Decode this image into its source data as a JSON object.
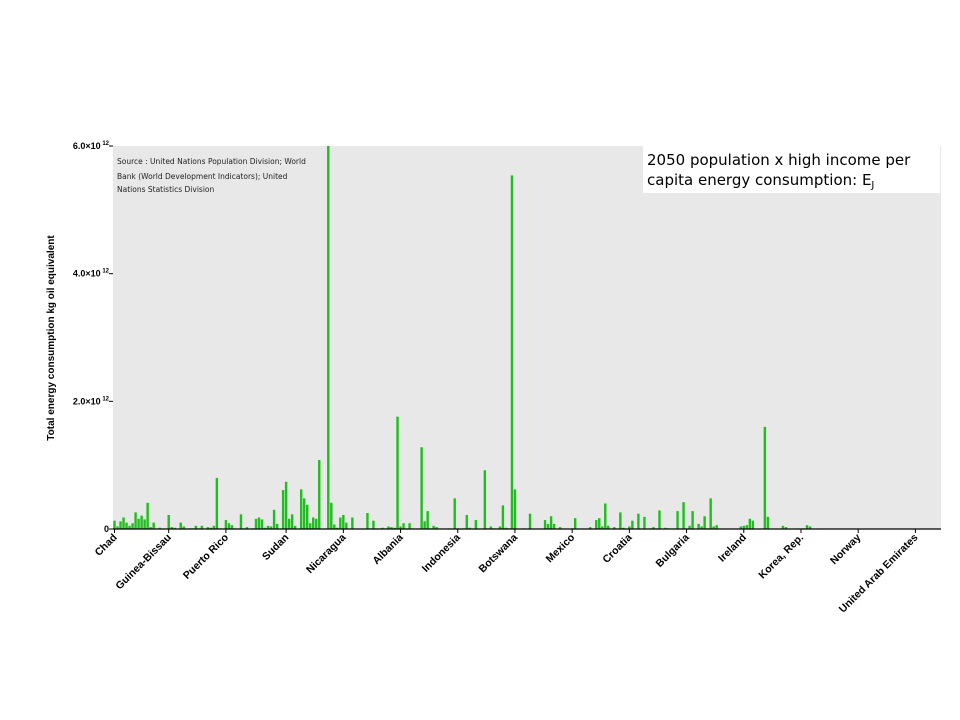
{
  "colors": {
    "bar": "#1DBF1D",
    "plot_background": "#E8E8E8",
    "title_box": "#FFFFFF",
    "axis": "#000000"
  },
  "chart_data": {
    "type": "bar",
    "title_lines": [
      "2050 population x high income per",
      "capita energy consumption: E"
    ],
    "title_subscript": "J",
    "source_lines": [
      "Source : United Nations Population Division; World",
      "Bank (World Development Indicators); United",
      "Nations Statistics Division"
    ],
    "xlabel": "",
    "ylabel": "Total energy consumption kg oil equivalent",
    "ylim": [
      0,
      6000000000000.0
    ],
    "y_ticks": [
      {
        "mantissa": "0",
        "exp": "",
        "value": 0
      },
      {
        "mantissa": "2.0×10",
        "exp": "12",
        "value": 2000000000000.0
      },
      {
        "mantissa": "4.0×10",
        "exp": "12",
        "value": 4000000000000.0
      },
      {
        "mantissa": "6.0×10",
        "exp": "12",
        "value": 6000000000000.0
      }
    ],
    "grid": false,
    "x_labeled_categories": [
      {
        "label": "Chad",
        "index": 0
      },
      {
        "label": "Guinea-Bissau",
        "index": 18
      },
      {
        "label": "Puerto Rico",
        "index": 37
      },
      {
        "label": "Sudan",
        "index": 57
      },
      {
        "label": "Nicaragua",
        "index": 76
      },
      {
        "label": "Albania",
        "index": 95
      },
      {
        "label": "Indonesia",
        "index": 114
      },
      {
        "label": "Botswana",
        "index": 133
      },
      {
        "label": "Mexico",
        "index": 152
      },
      {
        "label": "Croatia",
        "index": 171
      },
      {
        "label": "Bulgaria",
        "index": 190
      },
      {
        "label": "Ireland",
        "index": 209
      },
      {
        "label": "Korea, Rep.",
        "index": 228
      },
      {
        "label": "Norway",
        "index": 247
      },
      {
        "label": "United Arab Emirates",
        "index": 266
      }
    ],
    "bar_count": 275,
    "values_e12": [
      0.13,
      0.04,
      0.12,
      0.18,
      0.1,
      0.05,
      0.09,
      0.26,
      0.16,
      0.21,
      0.15,
      0.41,
      0.03,
      0.1,
      0.0,
      0.02,
      0.0,
      0.0,
      0.22,
      0.03,
      0.02,
      0.0,
      0.1,
      0.04,
      0.0,
      0.01,
      0.01,
      0.05,
      0.01,
      0.05,
      0.0,
      0.03,
      0.02,
      0.05,
      0.8,
      0.01,
      0.0,
      0.14,
      0.09,
      0.06,
      0.01,
      0.0,
      0.23,
      0.01,
      0.03,
      0.0,
      0.01,
      0.16,
      0.18,
      0.15,
      0.02,
      0.05,
      0.04,
      0.3,
      0.08,
      0.0,
      0.61,
      0.74,
      0.16,
      0.23,
      0.05,
      0.0,
      0.62,
      0.48,
      0.38,
      0.09,
      0.18,
      0.16,
      1.08,
      0.0,
      0.0,
      6.0,
      0.41,
      0.07,
      0.02,
      0.18,
      0.22,
      0.1,
      0.0,
      0.18,
      0.0,
      0.0,
      0.0,
      0.0,
      0.25,
      0.01,
      0.13,
      0.01,
      0.0,
      0.02,
      0.01,
      0.04,
      0.03,
      0.02,
      1.76,
      0.04,
      0.09,
      0.01,
      0.09,
      0.01,
      0.0,
      0.0,
      1.28,
      0.12,
      0.28,
      0.01,
      0.05,
      0.03,
      0.0,
      0.0,
      0.0,
      0.01,
      0.0,
      0.48,
      0.01,
      0.0,
      0.01,
      0.22,
      0.02,
      0.0,
      0.14,
      0.0,
      0.0,
      0.92,
      0.01,
      0.04,
      0.01,
      0.0,
      0.04,
      0.37,
      0.02,
      0.01,
      5.54,
      0.62,
      0.0,
      0.0,
      0.01,
      0.0,
      0.24,
      0.0,
      0.0,
      0.0,
      0.0,
      0.14,
      0.08,
      0.2,
      0.08,
      0.0,
      0.03,
      0.0,
      0.0,
      0.0,
      0.01,
      0.17,
      0.0,
      0.0,
      0.0,
      0.0,
      0.03,
      0.0,
      0.14,
      0.17,
      0.04,
      0.4,
      0.05,
      0.0,
      0.03,
      0.0,
      0.26,
      0.02,
      0.0,
      0.04,
      0.13,
      0.0,
      0.24,
      0.0,
      0.19,
      0.0,
      0.01,
      0.03,
      0.01,
      0.29,
      0.0,
      0.02,
      0.01,
      0.0,
      0.0,
      0.28,
      0.0,
      0.42,
      0.0,
      0.05,
      0.28,
      0.0,
      0.08,
      0.04,
      0.2,
      0.01,
      0.48,
      0.04,
      0.06,
      0.0,
      0.0,
      0.0,
      0.0,
      0.0,
      0.0,
      0.0,
      0.04,
      0.05,
      0.06,
      0.16,
      0.13,
      0.0,
      0.0,
      0.0,
      1.6,
      0.19,
      0.0,
      0.0,
      0.0,
      0.0,
      0.05,
      0.03,
      0.0,
      0.0,
      0.0,
      0.01,
      0.0,
      0.01,
      0.06,
      0.04,
      0.0,
      0.0,
      0.0,
      0.0,
      0.0,
      0.0,
      0.0,
      0.0,
      0.0,
      0.0,
      0.0,
      0.0,
      0.0,
      0.0,
      0.0,
      0.0,
      0.0,
      0.0,
      0.0,
      0.0,
      0.0,
      0.0,
      0.0,
      0.0,
      0.0,
      0.0,
      0.0,
      0.0,
      0.0,
      0.0,
      0.0,
      0.0,
      0.0,
      0.0,
      0.0,
      0.0,
      0.0,
      0.0
    ]
  }
}
